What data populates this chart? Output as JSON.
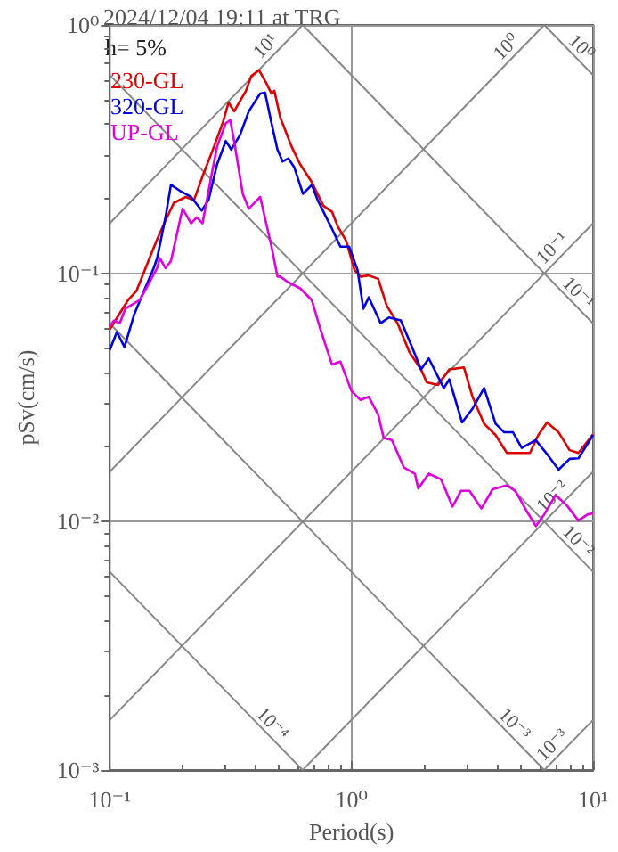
{
  "chart_data": {
    "type": "line",
    "title": "2024/12/04 19:11 at TRG",
    "xlabel": "Period(s)",
    "ylabel": "pSv(cm/s)",
    "annotations": [
      "h= 5%"
    ],
    "log": "xy",
    "grid": true,
    "legend": "top left",
    "xlim": [
      0.1,
      10
    ],
    "ylim": [
      0.001,
      1
    ],
    "xticks": [
      {
        "value": 0.1,
        "label": "10⁻¹"
      },
      {
        "value": 0.2,
        "label": null
      },
      {
        "value": 0.3,
        "label": null
      },
      {
        "value": 0.4,
        "label": null
      },
      {
        "value": 0.5,
        "label": null
      },
      {
        "value": 0.6,
        "label": null
      },
      {
        "value": 0.7,
        "label": null
      },
      {
        "value": 0.8,
        "label": null
      },
      {
        "value": 0.9,
        "label": null
      },
      {
        "value": 1,
        "label": "10⁰"
      },
      {
        "value": 2,
        "label": null
      },
      {
        "value": 3,
        "label": null
      },
      {
        "value": 4,
        "label": null
      },
      {
        "value": 5,
        "label": null
      },
      {
        "value": 6,
        "label": null
      },
      {
        "value": 7,
        "label": null
      },
      {
        "value": 8,
        "label": null
      },
      {
        "value": 9,
        "label": null
      },
      {
        "value": 10,
        "label": "10¹"
      }
    ],
    "yticks": [
      {
        "value": 0.001,
        "label": "10⁻³"
      },
      {
        "value": 0.002,
        "label": null
      },
      {
        "value": 0.003,
        "label": null
      },
      {
        "value": 0.004,
        "label": null
      },
      {
        "value": 0.005,
        "label": null
      },
      {
        "value": 0.006,
        "label": null
      },
      {
        "value": 0.007,
        "label": null
      },
      {
        "value": 0.008,
        "label": null
      },
      {
        "value": 0.009,
        "label": null
      },
      {
        "value": 0.01,
        "label": "10⁻²"
      },
      {
        "value": 0.02,
        "label": null
      },
      {
        "value": 0.03,
        "label": null
      },
      {
        "value": 0.04,
        "label": null
      },
      {
        "value": 0.05,
        "label": null
      },
      {
        "value": 0.06,
        "label": null
      },
      {
        "value": 0.07,
        "label": null
      },
      {
        "value": 0.08,
        "label": null
      },
      {
        "value": 0.09,
        "label": null
      },
      {
        "value": 0.1,
        "label": "10⁻¹"
      },
      {
        "value": 0.2,
        "label": null
      },
      {
        "value": 0.3,
        "label": null
      },
      {
        "value": 0.4,
        "label": null
      },
      {
        "value": 0.5,
        "label": null
      },
      {
        "value": 0.6,
        "label": null
      },
      {
        "value": 0.7,
        "label": null
      },
      {
        "value": 0.8,
        "label": null
      },
      {
        "value": 0.9,
        "label": null
      },
      {
        "value": 1,
        "label": "10⁰"
      }
    ],
    "series": [
      {
        "name": "230-GL",
        "color": "#dd0000",
        "x": [
          0.1,
          0.119,
          0.129,
          0.156,
          0.17,
          0.184,
          0.206,
          0.223,
          0.242,
          0.27,
          0.293,
          0.31,
          0.327,
          0.366,
          0.385,
          0.414,
          0.442,
          0.467,
          0.48,
          0.507,
          0.565,
          0.613,
          0.685,
          0.765,
          0.831,
          0.876,
          0.951,
          1.03,
          1.09,
          1.18,
          1.29,
          1.4,
          1.55,
          1.74,
          1.94,
          2.05,
          2.28,
          2.54,
          2.92,
          3.17,
          3.54,
          3.95,
          4.4,
          4.91,
          5.48,
          5.93,
          6.45,
          7.2,
          8.0,
          8.7,
          10
        ],
        "values": [
          0.0595,
          0.078,
          0.085,
          0.135,
          0.163,
          0.192,
          0.203,
          0.197,
          0.246,
          0.324,
          0.402,
          0.487,
          0.449,
          0.543,
          0.623,
          0.658,
          0.589,
          0.529,
          0.543,
          0.425,
          0.324,
          0.275,
          0.233,
          0.187,
          0.177,
          0.155,
          0.135,
          0.103,
          0.097,
          0.098,
          0.095,
          0.074,
          0.063,
          0.048,
          0.041,
          0.0364,
          0.0355,
          0.041,
          0.0418,
          0.0318,
          0.0248,
          0.0223,
          0.0189,
          0.0189,
          0.0189,
          0.0223,
          0.0251,
          0.0229,
          0.0194,
          0.0189,
          0.0225
        ]
      },
      {
        "name": "320-GL",
        "color": "#0000dd",
        "x": [
          0.1,
          0.107,
          0.115,
          0.126,
          0.14,
          0.152,
          0.157,
          0.17,
          0.179,
          0.195,
          0.217,
          0.24,
          0.256,
          0.278,
          0.302,
          0.318,
          0.346,
          0.376,
          0.419,
          0.439,
          0.467,
          0.494,
          0.519,
          0.548,
          0.58,
          0.63,
          0.686,
          0.725,
          0.831,
          0.9,
          0.978,
          1.06,
          1.12,
          1.18,
          1.32,
          1.43,
          1.6,
          1.78,
          1.94,
          2.09,
          2.41,
          2.54,
          2.87,
          3.17,
          3.54,
          3.95,
          4.29,
          4.66,
          5.07,
          5.79,
          6.45,
          7.2,
          8.0,
          8.7,
          10
        ],
        "values": [
          0.0492,
          0.058,
          0.0505,
          0.068,
          0.087,
          0.105,
          0.115,
          0.168,
          0.227,
          0.215,
          0.203,
          0.179,
          0.197,
          0.275,
          0.341,
          0.315,
          0.361,
          0.449,
          0.529,
          0.534,
          0.402,
          0.315,
          0.282,
          0.29,
          0.267,
          0.209,
          0.227,
          0.197,
          0.151,
          0.128,
          0.128,
          0.103,
          0.072,
          0.08,
          0.063,
          0.0664,
          0.0646,
          0.0505,
          0.041,
          0.0454,
          0.0345,
          0.0374,
          0.0251,
          0.0285,
          0.0345,
          0.0248,
          0.0229,
          0.0229,
          0.0198,
          0.0213,
          0.0187,
          0.0162,
          0.0179,
          0.018,
          0.0223
        ]
      },
      {
        "name": "UP-GL",
        "color": "#dd00dd",
        "x": [
          0.1,
          0.104,
          0.11,
          0.116,
          0.133,
          0.144,
          0.157,
          0.161,
          0.17,
          0.179,
          0.2,
          0.217,
          0.229,
          0.242,
          0.263,
          0.278,
          0.302,
          0.315,
          0.327,
          0.355,
          0.376,
          0.419,
          0.467,
          0.494,
          0.507,
          0.548,
          0.613,
          0.685,
          0.744,
          0.831,
          0.9,
          1.0,
          1.09,
          1.18,
          1.29,
          1.36,
          1.47,
          1.65,
          1.83,
          1.89,
          2.09,
          2.35,
          2.62,
          2.84,
          3.08,
          3.45,
          3.84,
          4.4,
          4.77,
          5.32,
          5.8,
          6.28,
          7.0,
          7.8,
          8.7,
          9.5,
          10
        ],
        "values": [
          0.0612,
          0.0645,
          0.063,
          0.072,
          0.078,
          0.0897,
          0.105,
          0.115,
          0.105,
          0.112,
          0.182,
          0.159,
          0.168,
          0.159,
          0.246,
          0.324,
          0.402,
          0.414,
          0.341,
          0.209,
          0.182,
          0.203,
          0.128,
          0.097,
          0.097,
          0.092,
          0.087,
          0.078,
          0.0595,
          0.0429,
          0.0441,
          0.0336,
          0.0309,
          0.0318,
          0.027,
          0.0217,
          0.0213,
          0.0165,
          0.0156,
          0.0136,
          0.0156,
          0.0148,
          0.0115,
          0.0133,
          0.0133,
          0.0113,
          0.0135,
          0.014,
          0.0133,
          0.011,
          0.0096,
          0.0107,
          0.0128,
          0.0116,
          0.0101,
          0.0107,
          0.0108
        ]
      },
      {
        "type": "line",
        "name": "10¹",
        "color": "#888888",
        "x": [
          0.1,
          0.628
        ],
        "values": [
          0.159,
          1
        ]
      },
      {
        "type": "line",
        "name": "10⁰",
        "color": "#888888",
        "x": [
          0.1,
          6.28
        ],
        "values": [
          0.0159,
          1
        ]
      },
      {
        "type": "line",
        "name": "10⁻¹",
        "color": "#888888",
        "x": [
          0.1,
          10
        ],
        "values": [
          0.00159,
          0.159
        ]
      },
      {
        "type": "line",
        "name": "10⁻²",
        "color": "#888888",
        "x": [
          0.628,
          10
        ],
        "values": [
          0.001,
          0.0159
        ]
      },
      {
        "type": "line",
        "name": "10⁻³",
        "color": "#888888",
        "x": [
          6.28,
          10
        ],
        "values": [
          0.001,
          0.00159
        ]
      },
      {
        "type": "line",
        "name": "10⁰",
        "color": "#888888",
        "x": [
          6.28,
          10
        ],
        "values": [
          1,
          0.628
        ]
      },
      {
        "type": "line",
        "name": "10⁻¹",
        "color": "#888888",
        "x": [
          0.628,
          10
        ],
        "values": [
          1,
          0.0628
        ]
      },
      {
        "type": "line",
        "name": "10⁻²",
        "color": "#888888",
        "x": [
          0.1,
          10
        ],
        "values": [
          0.628,
          0.00628
        ]
      },
      {
        "type": "line",
        "name": "10⁻³",
        "color": "#888888",
        "x": [
          0.1,
          6.28
        ],
        "values": [
          0.0628,
          0.001
        ]
      },
      {
        "type": "line",
        "name": "10⁻⁴",
        "color": "#888888",
        "x": [
          0.1,
          0.628
        ],
        "values": [
          0.00628,
          0.001
        ]
      }
    ]
  }
}
